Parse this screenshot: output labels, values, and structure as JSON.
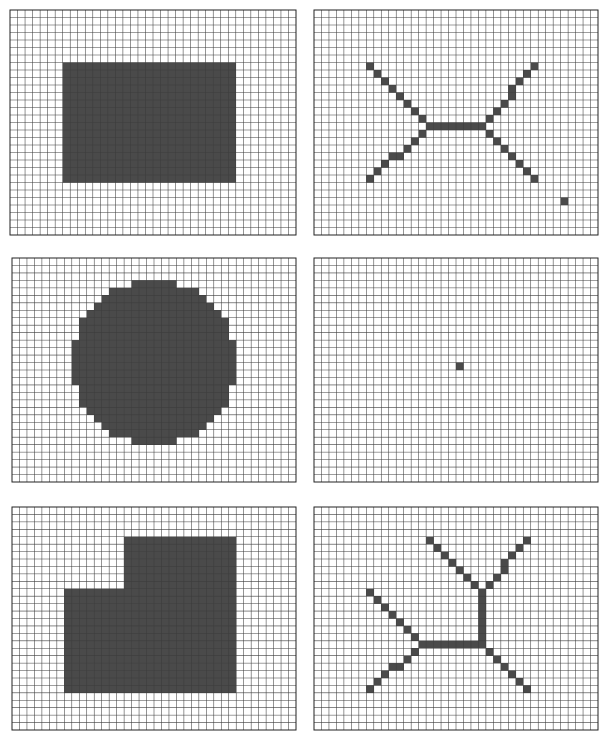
{
  "figure": {
    "panels": [
      {
        "id": "shape-rectangle",
        "kind": "shape",
        "description_name": "rectangle"
      },
      {
        "id": "skeleton-rectangle",
        "kind": "skeleton",
        "description_name": "rectangle-skeleton"
      },
      {
        "id": "shape-circle",
        "kind": "shape",
        "description_name": "circle"
      },
      {
        "id": "skeleton-circle",
        "kind": "skeleton",
        "description_name": "circle-skeleton"
      },
      {
        "id": "shape-l-polygon",
        "kind": "shape",
        "description_name": "l-polygon"
      },
      {
        "id": "skeleton-l-polygon",
        "kind": "skeleton",
        "description_name": "l-polygon-skeleton"
      }
    ],
    "colors": {
      "background": "#ffffff",
      "grid": "#3c3c3c",
      "fill": "#4a4a4a"
    }
  }
}
